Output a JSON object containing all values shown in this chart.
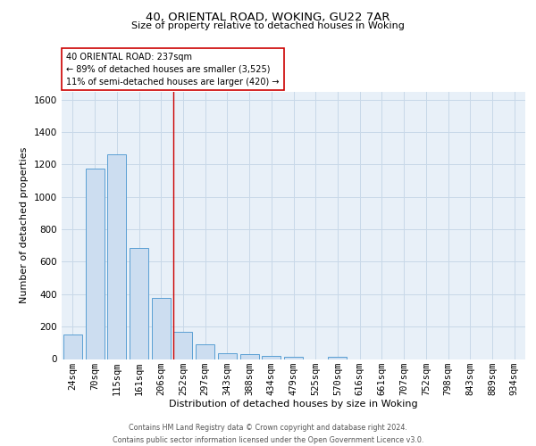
{
  "title1": "40, ORIENTAL ROAD, WOKING, GU22 7AR",
  "title2": "Size of property relative to detached houses in Woking",
  "xlabel": "Distribution of detached houses by size in Woking",
  "ylabel": "Number of detached properties",
  "bar_labels": [
    "24sqm",
    "70sqm",
    "115sqm",
    "161sqm",
    "206sqm",
    "252sqm",
    "297sqm",
    "343sqm",
    "388sqm",
    "434sqm",
    "479sqm",
    "525sqm",
    "570sqm",
    "616sqm",
    "661sqm",
    "707sqm",
    "752sqm",
    "798sqm",
    "843sqm",
    "889sqm",
    "934sqm"
  ],
  "bar_heights": [
    150,
    1175,
    1260,
    685,
    375,
    170,
    90,
    38,
    28,
    18,
    15,
    0,
    13,
    0,
    0,
    0,
    0,
    0,
    0,
    0,
    0
  ],
  "bar_color": "#ccddf0",
  "bar_edge_color": "#5a9fd4",
  "vline_pos": 4.575,
  "vline_color": "#cc0000",
  "ylim": [
    0,
    1650
  ],
  "yticks": [
    0,
    200,
    400,
    600,
    800,
    1000,
    1200,
    1400,
    1600
  ],
  "annotation_text": "40 ORIENTAL ROAD: 237sqm\n← 89% of detached houses are smaller (3,525)\n11% of semi-detached houses are larger (420) →",
  "annotation_box_color": "#ffffff",
  "annotation_box_edge": "#cc0000",
  "footer_text": "Contains HM Land Registry data © Crown copyright and database right 2024.\nContains public sector information licensed under the Open Government Licence v3.0.",
  "grid_color": "#c8d8e8",
  "background_color": "#e8f0f8",
  "title1_fontsize": 9.5,
  "title2_fontsize": 8,
  "xlabel_fontsize": 8,
  "ylabel_fontsize": 8,
  "tick_fontsize": 7.5,
  "ann_fontsize": 7
}
